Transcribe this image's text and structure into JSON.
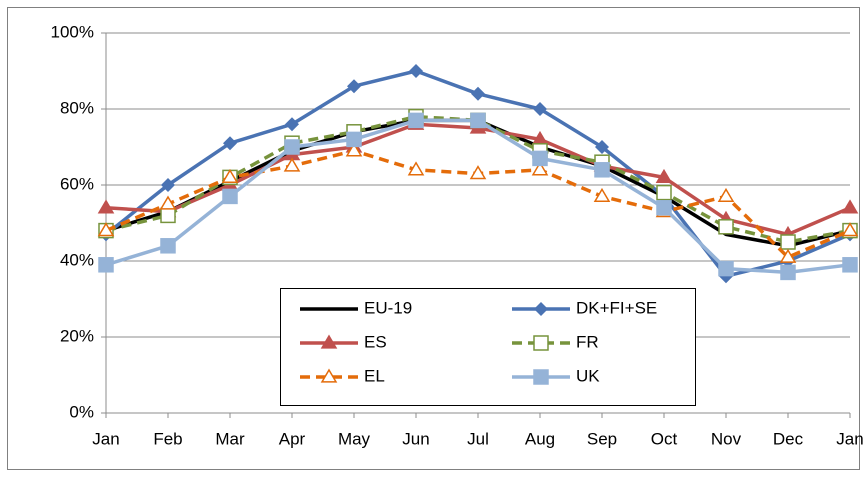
{
  "chart_data": {
    "type": "line",
    "categories": [
      "Jan",
      "Feb",
      "Mar",
      "Apr",
      "May",
      "Jun",
      "Jul",
      "Aug",
      "Sep",
      "Oct",
      "Nov",
      "Dec",
      "Jan"
    ],
    "series": [
      {
        "name": "EU-19",
        "color": "#000000",
        "marker": "none",
        "dash": false,
        "values": [
          48,
          53,
          61,
          69,
          74,
          77,
          77,
          70,
          65,
          57,
          47,
          44,
          48
        ]
      },
      {
        "name": "DK+FI+SE",
        "color": "#4a73b3",
        "marker": "diamond",
        "dash": false,
        "values": [
          47,
          60,
          71,
          76,
          86,
          90,
          84,
          80,
          70,
          57,
          36,
          40,
          47
        ]
      },
      {
        "name": "ES",
        "color": "#c0504d",
        "marker": "triangle",
        "dash": false,
        "values": [
          54,
          53,
          60,
          68,
          70,
          76,
          75,
          72,
          65,
          62,
          51,
          47,
          54
        ]
      },
      {
        "name": "FR",
        "color": "#77933c",
        "marker": "open-square",
        "dash": true,
        "values": [
          48,
          52,
          62,
          71,
          74,
          78,
          77,
          69,
          66,
          58,
          49,
          45,
          48
        ]
      },
      {
        "name": "EL",
        "color": "#e46c0a",
        "marker": "open-triangle",
        "dash": true,
        "values": [
          48,
          55,
          62,
          65,
          69,
          64,
          63,
          64,
          57,
          53,
          57,
          41,
          48
        ]
      },
      {
        "name": "UK",
        "color": "#95b3d7",
        "marker": "square",
        "dash": false,
        "values": [
          39,
          44,
          57,
          70,
          72,
          77,
          77,
          67,
          64,
          54,
          38,
          37,
          39
        ]
      }
    ],
    "ylim": [
      0,
      100
    ],
    "yticks": [
      {
        "value": 0,
        "label": "0%"
      },
      {
        "value": 20,
        "label": "20%"
      },
      {
        "value": 40,
        "label": "40%"
      },
      {
        "value": 60,
        "label": "60%"
      },
      {
        "value": 80,
        "label": "80%"
      },
      {
        "value": 100,
        "label": "100%"
      }
    ],
    "grid": true
  }
}
